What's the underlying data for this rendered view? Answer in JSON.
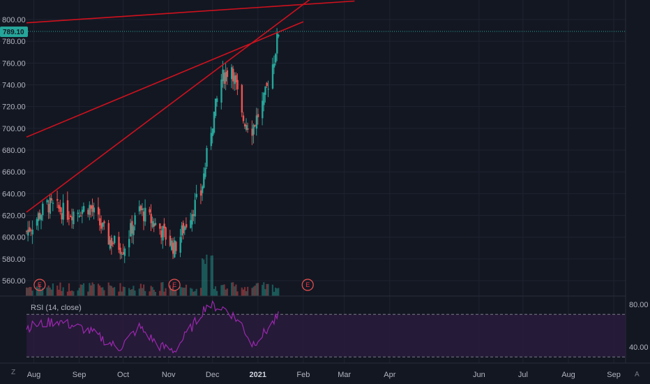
{
  "colors": {
    "background": "#131722",
    "grid": "#1f2330",
    "up": "#26a69a",
    "down": "#ef5350",
    "trendline": "#d0111d",
    "rsi_line": "#9c27b0",
    "rsi_band": "#2a1b3d",
    "last_price_badge": "#26a69a"
  },
  "price_axis": {
    "labels": [
      "800.00",
      "780.00",
      "760.00",
      "740.00",
      "720.00",
      "700.00",
      "680.00",
      "660.00",
      "640.00",
      "620.00",
      "600.00",
      "580.00",
      "560.00"
    ],
    "last_price": "789.10"
  },
  "time_axis": {
    "labels": [
      "Aug",
      "Sep",
      "Oct",
      "Nov",
      "Dec",
      "2021",
      "Feb",
      "Mar",
      "Apr",
      "Jun",
      "Jul",
      "Aug",
      "Sep"
    ]
  },
  "rsi_panel": {
    "title": "RSI (14, close)",
    "levels": [
      "80.00",
      "40.00"
    ]
  },
  "earnings_markers": [
    "E",
    "E",
    "E"
  ],
  "corner_buttons": {
    "left": "Z",
    "right": "A"
  },
  "chart_data": {
    "type": "candlestick",
    "ylim": [
      550,
      810
    ],
    "volume": "histogram",
    "upper_level": 70,
    "lower_level": 30,
    "trendlines": [
      {
        "from": [
          "2020-07-27",
          623
        ],
        "to": [
          "2021-02-08",
          821
        ]
      },
      {
        "from": [
          "2020-07-27",
          692
        ],
        "to": [
          "2021-02-01",
          798
        ]
      },
      {
        "from": [
          "2020-07-27",
          797
        ],
        "to": [
          "2021-03-08",
          817
        ]
      }
    ],
    "earnings_dates": [
      "2020-08-05",
      "2020-11-05",
      "2021-02-04"
    ],
    "ohlc_anchors": [
      {
        "date": "2020-07-27",
        "close": 605
      },
      {
        "date": "2020-08-10",
        "close": 630
      },
      {
        "date": "2020-08-24",
        "close": 622
      },
      {
        "date": "2020-09-08",
        "close": 628
      },
      {
        "date": "2020-09-21",
        "close": 598
      },
      {
        "date": "2020-10-01",
        "close": 590
      },
      {
        "date": "2020-10-12",
        "close": 625
      },
      {
        "date": "2020-10-26",
        "close": 608
      },
      {
        "date": "2020-11-05",
        "close": 590
      },
      {
        "date": "2020-11-16",
        "close": 622
      },
      {
        "date": "2020-11-23",
        "close": 640
      },
      {
        "date": "2020-11-30",
        "close": 700
      },
      {
        "date": "2020-12-07",
        "close": 745
      },
      {
        "date": "2020-12-14",
        "close": 758
      },
      {
        "date": "2020-12-21",
        "close": 710
      },
      {
        "date": "2020-12-28",
        "close": 700
      },
      {
        "date": "2021-01-05",
        "close": 725
      },
      {
        "date": "2021-01-12",
        "close": 765
      },
      {
        "date": "2021-01-15",
        "close": 789.1
      }
    ],
    "rsi_anchors": [
      {
        "date": "2020-07-27",
        "value": 58
      },
      {
        "date": "2020-08-17",
        "value": 64
      },
      {
        "date": "2020-09-07",
        "value": 55
      },
      {
        "date": "2020-09-28",
        "value": 38
      },
      {
        "date": "2020-10-12",
        "value": 58
      },
      {
        "date": "2020-10-26",
        "value": 40
      },
      {
        "date": "2020-11-05",
        "value": 36
      },
      {
        "date": "2020-11-20",
        "value": 64
      },
      {
        "date": "2020-11-27",
        "value": 79
      },
      {
        "date": "2020-12-11",
        "value": 75
      },
      {
        "date": "2020-12-21",
        "value": 60
      },
      {
        "date": "2020-12-28",
        "value": 42
      },
      {
        "date": "2021-01-05",
        "value": 52
      },
      {
        "date": "2021-01-15",
        "value": 68
      }
    ]
  }
}
